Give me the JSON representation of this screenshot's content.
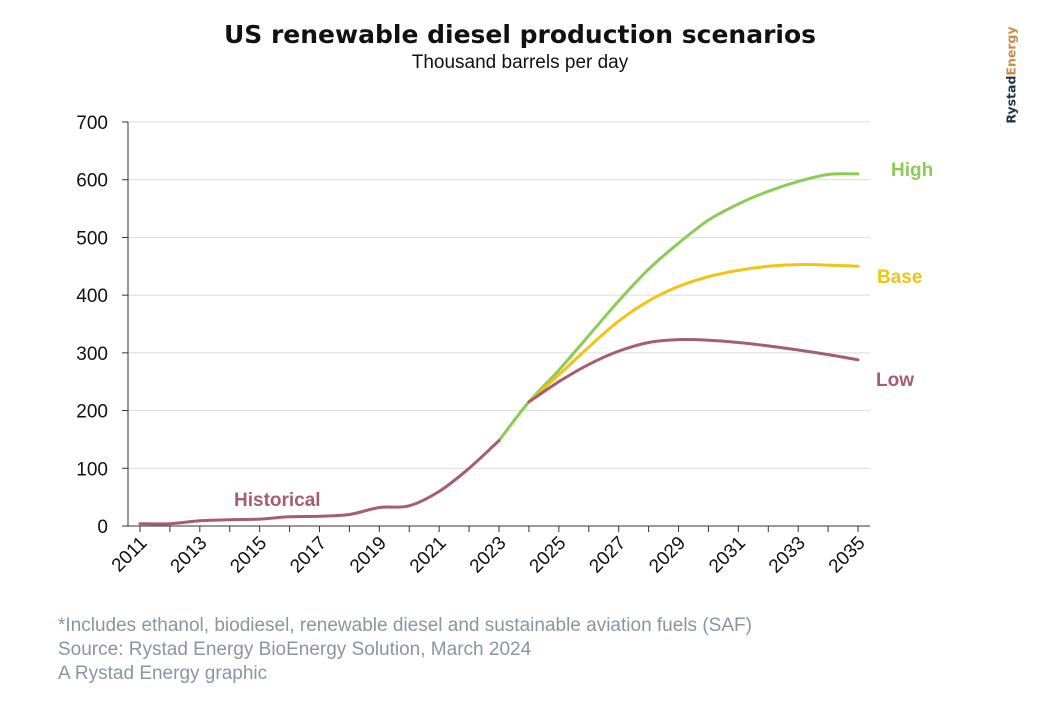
{
  "brand": {
    "part1": "Rystad",
    "part2": "Energy"
  },
  "footnotes": [
    "*Includes ethanol, biodiesel, renewable diesel and sustainable aviation fuels (SAF)",
    "Source: Rystad Energy BioEnergy Solution, March 2024",
    "A Rystad Energy graphic"
  ],
  "colors": {
    "historical": "#a35f6e",
    "high": "#8dcb57",
    "base": "#f2c313",
    "low": "#a35f6e",
    "grid": "#dcdcdc",
    "axis": "#333333"
  },
  "chart_data": {
    "type": "line",
    "title": "US renewable diesel production scenarios",
    "subtitle": "Thousand barrels per day",
    "xlabel": "",
    "ylabel": "",
    "xlim": [
      2010.6,
      2035.4
    ],
    "ylim": [
      0,
      700
    ],
    "yticks": [
      "0",
      "100",
      "200",
      "300",
      "400",
      "500",
      "600",
      "700"
    ],
    "xticks": [
      "2011",
      "2013",
      "2015",
      "2017",
      "2019",
      "2021",
      "2023",
      "2025",
      "2027",
      "2029",
      "2031",
      "2033",
      "2035"
    ],
    "grid": true,
    "legend": "inline-right",
    "series": [
      {
        "name": "Historical",
        "color_key": "historical",
        "x": [
          2011,
          2012,
          2013,
          2014,
          2015,
          2016,
          2017,
          2018,
          2019,
          2020,
          2021,
          2022,
          2023
        ],
        "y": [
          4,
          4,
          9,
          11,
          12,
          16,
          17,
          20,
          32,
          35,
          60,
          100,
          148
        ]
      },
      {
        "name": "High",
        "color_key": "high",
        "x": [
          2023,
          2024,
          2025,
          2026,
          2027,
          2028,
          2029,
          2030,
          2031,
          2032,
          2033,
          2034,
          2035
        ],
        "y": [
          148,
          215,
          270,
          330,
          390,
          445,
          490,
          530,
          558,
          580,
          597,
          609,
          610
        ]
      },
      {
        "name": "Base",
        "color_key": "base",
        "x": [
          2024,
          2025,
          2026,
          2027,
          2028,
          2029,
          2030,
          2031,
          2032,
          2033,
          2034,
          2035
        ],
        "y": [
          215,
          262,
          310,
          355,
          390,
          415,
          432,
          443,
          450,
          453,
          452,
          450
        ]
      },
      {
        "name": "Low",
        "color_key": "low",
        "x": [
          2024,
          2025,
          2026,
          2027,
          2028,
          2029,
          2030,
          2031,
          2032,
          2033,
          2034,
          2035
        ],
        "y": [
          215,
          250,
          280,
          303,
          318,
          323,
          322,
          318,
          312,
          305,
          297,
          288
        ]
      }
    ]
  }
}
